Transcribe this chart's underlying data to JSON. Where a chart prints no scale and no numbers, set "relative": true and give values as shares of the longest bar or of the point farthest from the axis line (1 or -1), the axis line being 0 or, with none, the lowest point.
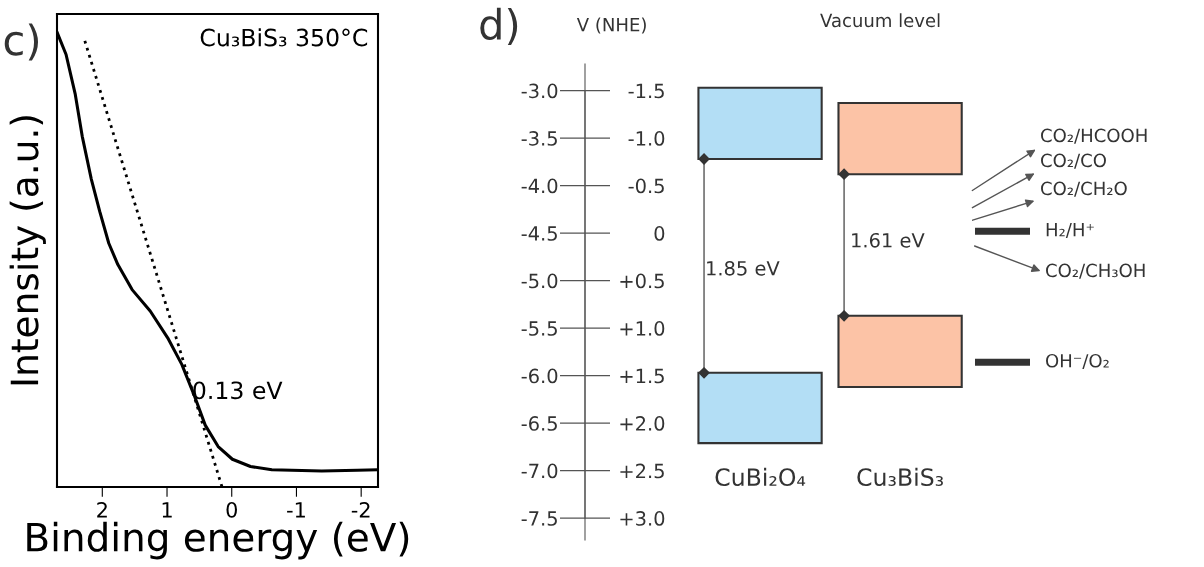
{
  "chart_data": [
    {
      "type": "line",
      "xlabel": "Binding energy (eV)",
      "ylabel": "Intensity (a.u.)",
      "relative": true,
      "xlim": [
        2.7,
        -2.26
      ],
      "xticks": [
        2,
        1,
        0,
        -1,
        -2
      ],
      "legend": false,
      "grid": false,
      "tick_labels": "x",
      "annotations": [
        "c)",
        "Cu₃BiS₃ 350°C",
        "0.13 eV"
      ],
      "series": [
        {
          "color": "#000000",
          "line_style": "solid",
          "x": [
            2.7,
            2.56,
            2.42,
            2.31,
            2.17,
            2.04,
            1.9,
            1.76,
            1.54,
            1.26,
            0.99,
            0.77,
            0.57,
            0.41,
            0.21,
            -0.01,
            -0.29,
            -0.62,
            -1.39,
            -1.94,
            -2.26
          ],
          "values": [
            1,
            0.951,
            0.865,
            0.771,
            0.677,
            0.606,
            0.536,
            0.489,
            0.434,
            0.387,
            0.328,
            0.269,
            0.198,
            0.136,
            0.089,
            0.061,
            0.045,
            0.038,
            0.035,
            0.037,
            0.038
          ]
        },
        {
          "color": "#000000",
          "line_style": "dotted",
          "x": [
            2.27,
            0.15
          ],
          "values": [
            0.981,
            0
          ]
        }
      ]
    },
    {
      "type": "bar",
      "categories": [
        "CuBi₂O₄",
        "Cu₃BiS₃"
      ],
      "y2label": "V (NHE)",
      "legend": false,
      "grid": false,
      "ylim": [
        -7.73,
        -2.72
      ],
      "yticks": [
        {
          "value": -3.0,
          "label": "-3.0"
        },
        -3.5,
        {
          "value": -4.0,
          "label": "-4.0"
        },
        -4.5,
        {
          "value": -5.0,
          "label": "-5.0"
        },
        -5.5,
        {
          "value": -6.0,
          "label": "-6.0"
        },
        -6.5,
        {
          "value": -7.0,
          "label": "-7.0"
        },
        -7.5
      ],
      "y2lim": [
        3.0,
        -1.5
      ],
      "y2ticks": [
        -1.5,
        {
          "value": -1.0,
          "label": "-1.0"
        },
        -0.5,
        0,
        {
          "value": 0.5,
          "label": "+0.5"
        },
        {
          "value": 1.0,
          "label": "+1.0"
        },
        {
          "value": 1.5,
          "label": "+1.5"
        },
        {
          "value": 2.0,
          "label": "+2.0"
        },
        {
          "value": 2.5,
          "label": "+2.5"
        },
        {
          "value": 3.0,
          "label": "+3.0"
        }
      ],
      "annotations": [
        "d)",
        "Vacuum level",
        "1.85 eV",
        "1.61 eV",
        "CO₂/HCOOH",
        "CO₂/CO",
        "CO₂/CH₂O",
        "CO₂/CH₃OH"
      ],
      "ref_lines": [
        {
          "axis": "y",
          "value": -4.48,
          "label": "H₂/H⁺",
          "color": "#333333"
        },
        {
          "axis": "y",
          "value": -5.86,
          "label": "OH⁻/O₂",
          "color": "#333333"
        }
      ],
      "series": [
        {
          "base": [
            -3.72,
            -3.88
          ],
          "values": [
            0.75,
            0.75
          ],
          "colors": [
            "#b3def5",
            "#fcc3a6"
          ]
        },
        {
          "base": [
            -6.71,
            -6.12
          ],
          "values": [
            0.74,
            0.75
          ],
          "colors": [
            "#b3def5",
            "#fcc3a6"
          ]
        }
      ]
    }
  ]
}
